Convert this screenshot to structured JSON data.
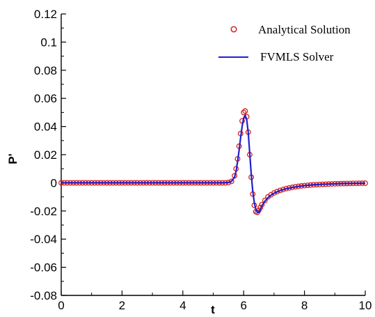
{
  "chart_data": {
    "type": "line",
    "xlabel": "t",
    "ylabel": "P'",
    "xlim": [
      0,
      10
    ],
    "ylim": [
      -0.08,
      0.12
    ],
    "x_ticks": [
      "0",
      "2",
      "4",
      "6",
      "8",
      "10"
    ],
    "y_ticks": [
      "-0.08",
      "-0.06",
      "-0.04",
      "-0.02",
      "0",
      "0.02",
      "0.04",
      "0.06",
      "0.08",
      "0.1",
      "0.12"
    ],
    "grid": false,
    "legend_position": "top-right",
    "series": [
      {
        "name": "Analytical Solution",
        "style": "markers",
        "marker": "circle",
        "color": "#d42020",
        "x": [
          0,
          0.1,
          0.2,
          0.3,
          0.4,
          0.5,
          0.6,
          0.7,
          0.8,
          0.9,
          1.0,
          1.1,
          1.2,
          1.3,
          1.4,
          1.5,
          1.6,
          1.7,
          1.8,
          1.9,
          2.0,
          2.1,
          2.2,
          2.3,
          2.4,
          2.5,
          2.6,
          2.7,
          2.8,
          2.9,
          3.0,
          3.1,
          3.2,
          3.3,
          3.4,
          3.5,
          3.6,
          3.7,
          3.8,
          3.9,
          4.0,
          4.1,
          4.2,
          4.3,
          4.4,
          4.5,
          4.6,
          4.7,
          4.8,
          4.9,
          5.0,
          5.1,
          5.2,
          5.3,
          5.4,
          5.5,
          5.6,
          5.7,
          5.75,
          5.8,
          5.85,
          5.9,
          5.95,
          6.0,
          6.05,
          6.1,
          6.15,
          6.2,
          6.25,
          6.3,
          6.35,
          6.4,
          6.45,
          6.5,
          6.55,
          6.6,
          6.7,
          6.8,
          6.9,
          7.0,
          7.1,
          7.2,
          7.3,
          7.4,
          7.5,
          7.6,
          7.7,
          7.8,
          7.9,
          8.0,
          8.1,
          8.2,
          8.3,
          8.4,
          8.5,
          8.6,
          8.7,
          8.8,
          8.9,
          9.0,
          9.1,
          9.2,
          9.3,
          9.4,
          9.5,
          9.6,
          9.7,
          9.8,
          9.9,
          10.0
        ],
        "y": [
          0,
          0,
          0,
          0,
          0,
          0,
          0,
          0,
          0,
          0,
          0,
          0,
          0,
          0,
          0,
          0,
          0,
          0,
          0,
          0,
          0,
          0,
          0,
          0,
          0,
          0,
          0,
          0,
          0,
          0,
          0,
          0,
          0,
          0,
          0,
          0,
          0,
          0,
          0,
          0,
          0,
          0,
          0,
          0,
          0,
          0,
          0,
          0,
          0,
          0,
          0,
          0,
          0,
          0,
          0,
          0.0002,
          0.001,
          0.005,
          0.01,
          0.017,
          0.026,
          0.035,
          0.044,
          0.05,
          0.051,
          0.047,
          0.036,
          0.02,
          0.004,
          -0.008,
          -0.016,
          -0.0205,
          -0.021,
          -0.0195,
          -0.0175,
          -0.0155,
          -0.0125,
          -0.01,
          -0.0085,
          -0.0072,
          -0.0062,
          -0.0054,
          -0.0047,
          -0.0041,
          -0.0036,
          -0.0032,
          -0.0028,
          -0.0025,
          -0.0022,
          -0.002,
          -0.0018,
          -0.0016,
          -0.0014,
          -0.0013,
          -0.0012,
          -0.0011,
          -0.001,
          -0.0009,
          -0.0008,
          -0.0007,
          -0.00065,
          -0.0006,
          -0.00055,
          -0.0005,
          -0.00045,
          -0.0004,
          -0.0004,
          -0.00035,
          -0.0003,
          -0.0003
        ]
      },
      {
        "name": "FVMLS Solver",
        "style": "line",
        "color": "#1f1fd0",
        "x": [
          0,
          1,
          2,
          3,
          4,
          5,
          5.3,
          5.5,
          5.6,
          5.7,
          5.75,
          5.8,
          5.85,
          5.9,
          5.95,
          6.0,
          6.05,
          6.1,
          6.15,
          6.2,
          6.25,
          6.3,
          6.35,
          6.4,
          6.45,
          6.5,
          6.55,
          6.6,
          6.7,
          6.8,
          6.9,
          7.0,
          7.2,
          7.4,
          7.6,
          7.8,
          8.0,
          8.3,
          8.6,
          9.0,
          9.3,
          9.6,
          10.0
        ],
        "y": [
          0,
          0,
          0,
          0,
          0,
          0,
          0,
          0.0002,
          0.001,
          0.004,
          0.008,
          0.015,
          0.023,
          0.032,
          0.04,
          0.046,
          0.048,
          0.045,
          0.036,
          0.021,
          0.006,
          -0.006,
          -0.014,
          -0.019,
          -0.021,
          -0.021,
          -0.019,
          -0.0165,
          -0.013,
          -0.0105,
          -0.0088,
          -0.0074,
          -0.0055,
          -0.0042,
          -0.0033,
          -0.0026,
          -0.002,
          -0.0014,
          -0.001,
          -0.0007,
          -0.0005,
          -0.0004,
          -0.0003
        ]
      }
    ]
  }
}
